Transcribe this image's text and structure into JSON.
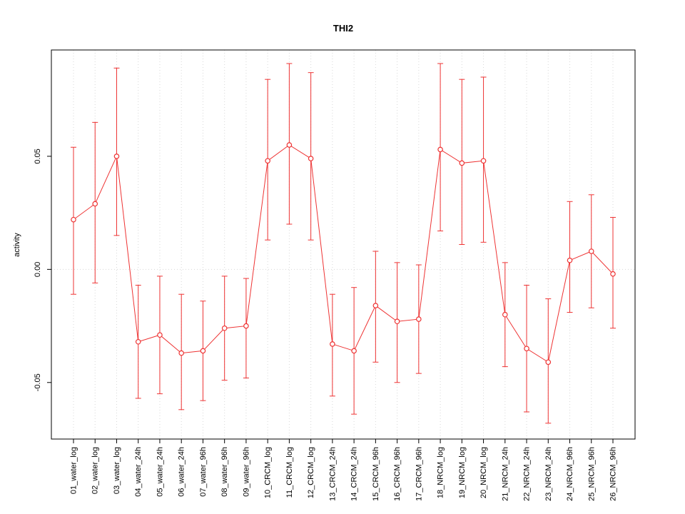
{
  "chart_data": {
    "type": "line",
    "title": "THI2",
    "ylabel": "activity",
    "xlabel": "",
    "legend": "none",
    "grid": {
      "vertical": true,
      "zero_line": true,
      "color": "#d8d8d8"
    },
    "point_style": "open-circle",
    "series_color": "#ee3333",
    "ylim": [
      -0.075,
      0.097
    ],
    "y_ticks": [
      {
        "value": -0.05,
        "label": "-0.05"
      },
      {
        "value": 0.0,
        "label": "0.00"
      },
      {
        "value": 0.05,
        "label": "0.05"
      }
    ],
    "categories": [
      "01_water_log",
      "02_water_log",
      "03_water_log",
      "04_water_24h",
      "05_water_24h",
      "06_water_24h",
      "07_water_96h",
      "08_water_96h",
      "09_water_96h",
      "10_CRCM_log",
      "11_CRCM_log",
      "12_CRCM_log",
      "13_CRCM_24h",
      "14_CRCM_24h",
      "15_CRCM_96h",
      "16_CRCM_96h",
      "17_CRCM_96h",
      "18_NRCM_log",
      "19_NRCM_log",
      "20_NRCM_log",
      "21_NRCM_24h",
      "22_NRCM_24h",
      "23_NRCM_24h",
      "24_NRCM_96h",
      "25_NRCM_96h",
      "26_NRCM_96h"
    ],
    "series": [
      {
        "name": "activity",
        "color": "#ee3333",
        "values": [
          0.022,
          0.029,
          0.05,
          -0.032,
          -0.029,
          -0.037,
          -0.036,
          -0.026,
          -0.025,
          0.048,
          0.055,
          0.049,
          -0.033,
          -0.036,
          -0.016,
          -0.023,
          -0.022,
          0.053,
          0.047,
          0.048,
          -0.02,
          -0.035,
          -0.041,
          0.004,
          0.008,
          -0.002
        ],
        "err_low": [
          -0.011,
          -0.006,
          0.015,
          -0.057,
          -0.055,
          -0.062,
          -0.058,
          -0.049,
          -0.048,
          0.013,
          0.02,
          0.013,
          -0.056,
          -0.064,
          -0.041,
          -0.05,
          -0.046,
          0.017,
          0.011,
          0.012,
          -0.043,
          -0.063,
          -0.068,
          -0.019,
          -0.017,
          -0.026
        ],
        "err_high": [
          0.054,
          0.065,
          0.089,
          -0.007,
          -0.003,
          -0.011,
          -0.014,
          -0.003,
          -0.004,
          0.084,
          0.091,
          0.087,
          -0.011,
          -0.008,
          0.008,
          0.003,
          0.002,
          0.091,
          0.084,
          0.085,
          0.003,
          -0.007,
          -0.013,
          0.03,
          0.033,
          0.023
        ]
      }
    ]
  }
}
